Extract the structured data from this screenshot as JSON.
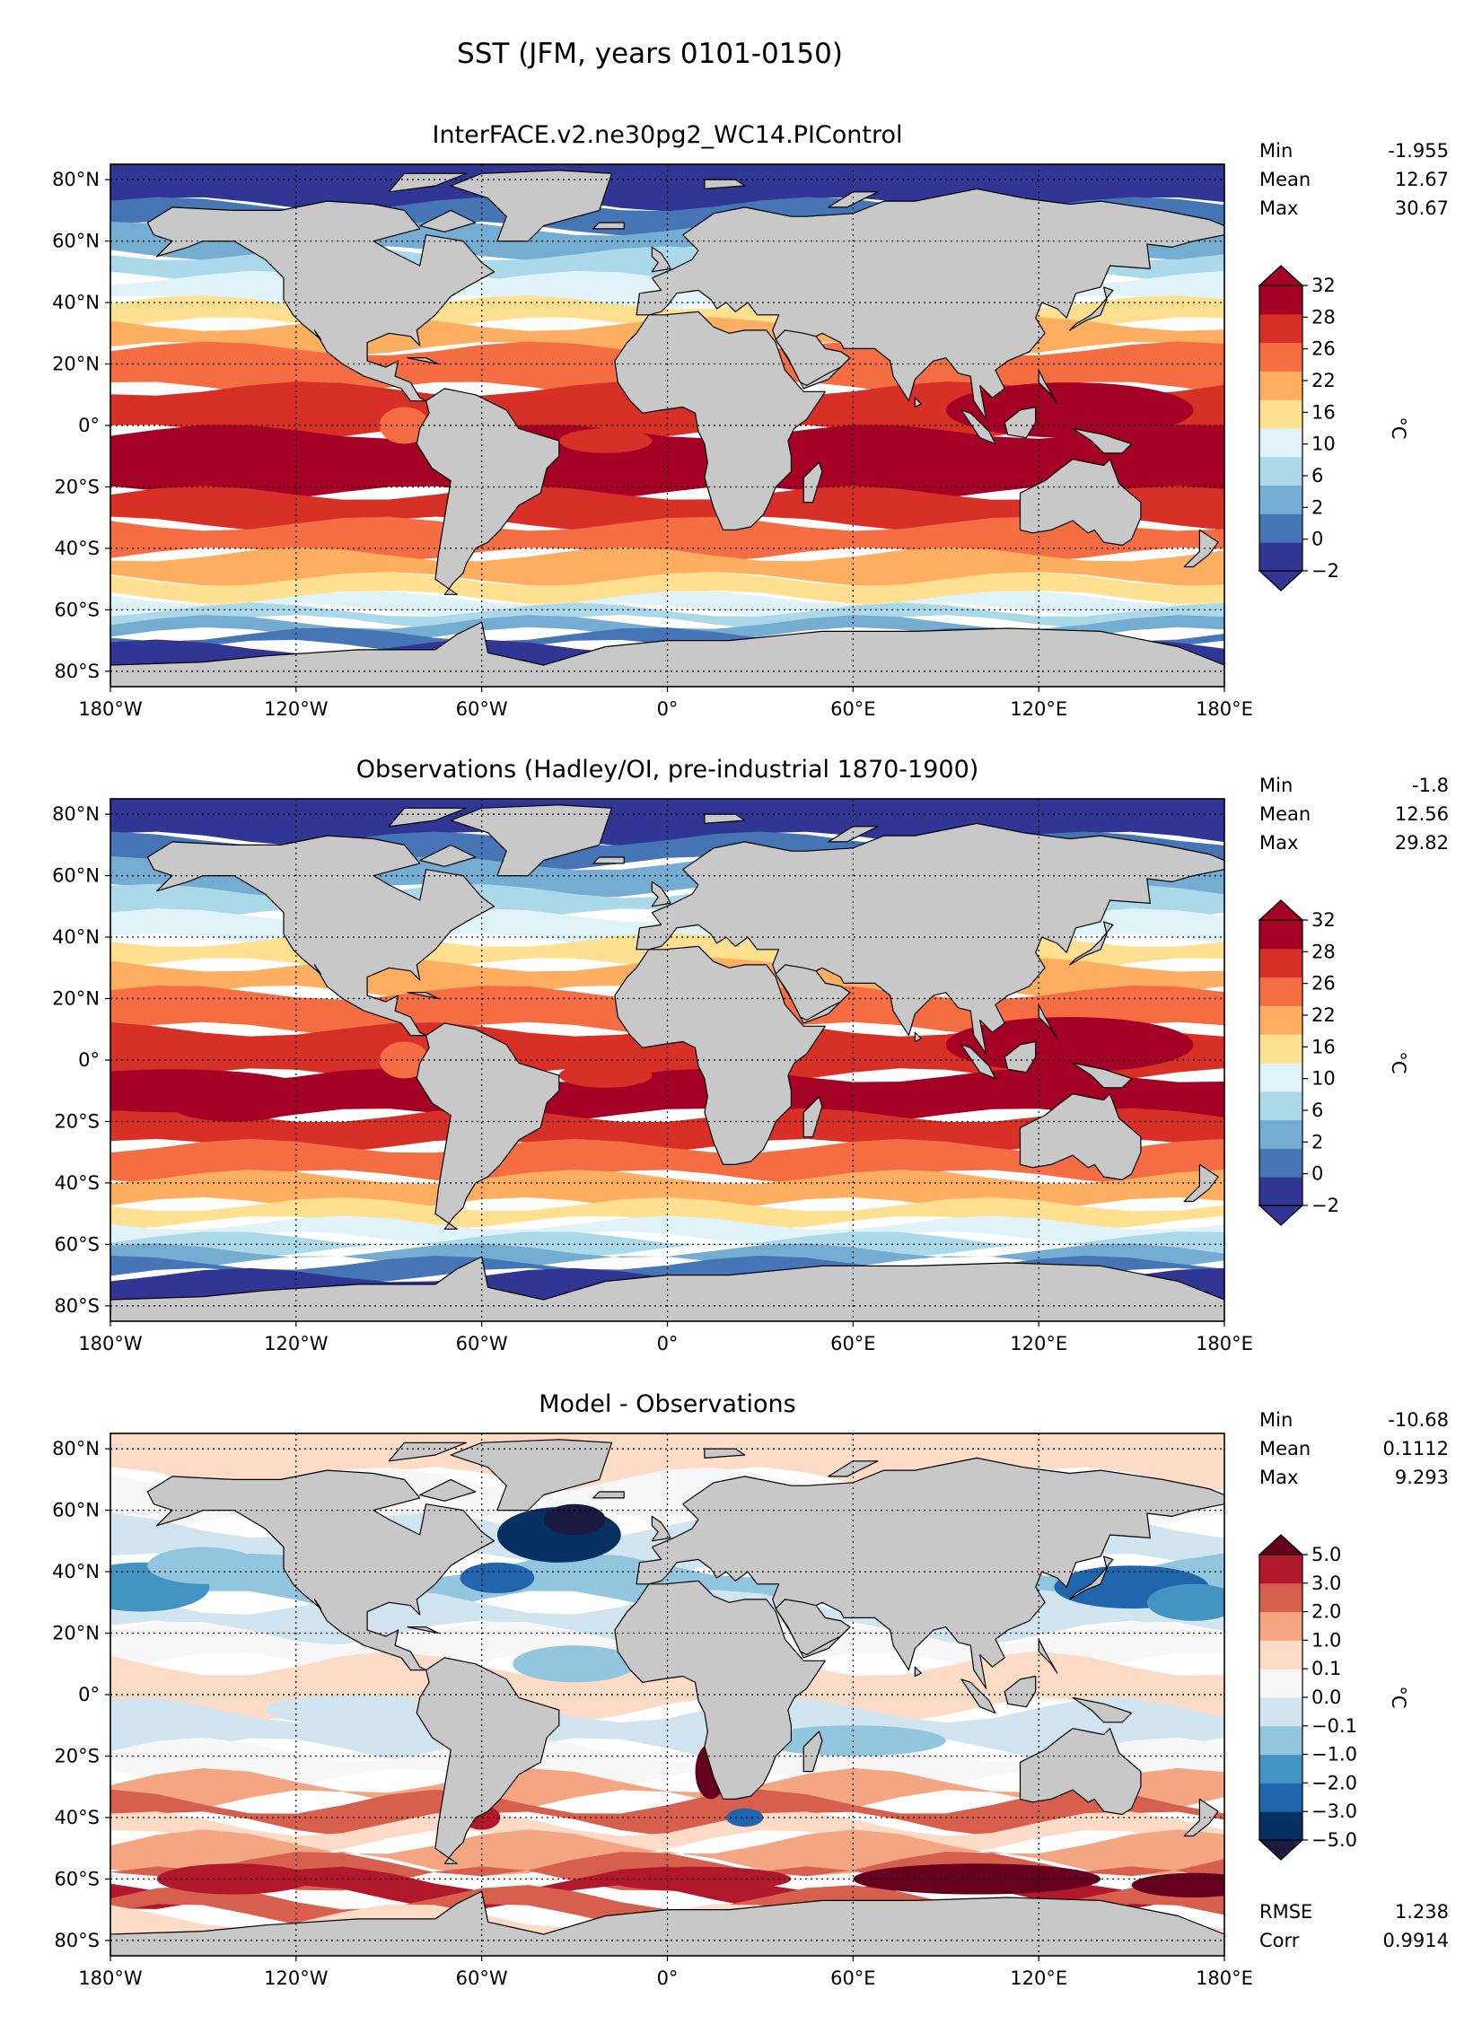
{
  "figure_title": "SST (JFM, years 0101-0150)",
  "lon_ticks": [
    "180°W",
    "120°W",
    "60°W",
    "0°",
    "60°E",
    "120°E",
    "180°E"
  ],
  "lat_ticks": [
    "80°N",
    "60°N",
    "40°N",
    "20°N",
    "0°",
    "20°S",
    "40°S",
    "60°S",
    "80°S"
  ],
  "colors": {
    "land": "#c8c8c8",
    "sst_levels": [
      "#313695",
      "#4575b4",
      "#74add1",
      "#abd9e9",
      "#e0f3f8",
      "#fee090",
      "#fdae61",
      "#f46d43",
      "#d73027",
      "#a50026"
    ],
    "diff_levels": [
      "#1a1a40",
      "#053061",
      "#2166ac",
      "#4393c3",
      "#92c5de",
      "#d1e5f0",
      "#f7f7f7",
      "#fddbc7",
      "#f4a582",
      "#d6604d",
      "#b2182b",
      "#67001f"
    ]
  },
  "panels": [
    {
      "title": "InterFACE.v2.ne30pg2_WC14.PIControl",
      "stats": [
        {
          "label": "Min",
          "value": "-1.955"
        },
        {
          "label": "Mean",
          "value": "12.67"
        },
        {
          "label": "Max",
          "value": "30.67"
        }
      ],
      "colorbar": {
        "unit": "°C",
        "ticks": [
          "−2",
          "0",
          "2",
          "6",
          "10",
          "16",
          "22",
          "26",
          "28",
          "32"
        ]
      }
    },
    {
      "title": "Observations (Hadley/OI, pre-industrial 1870-1900)",
      "stats": [
        {
          "label": "Min",
          "value": "-1.8"
        },
        {
          "label": "Mean",
          "value": "12.56"
        },
        {
          "label": "Max",
          "value": "29.82"
        }
      ],
      "colorbar": {
        "unit": "°C",
        "ticks": [
          "−2",
          "0",
          "2",
          "6",
          "10",
          "16",
          "22",
          "26",
          "28",
          "32"
        ]
      }
    },
    {
      "title": "Model - Observations",
      "stats": [
        {
          "label": "Min",
          "value": "-10.68"
        },
        {
          "label": "Mean",
          "value": "0.1112"
        },
        {
          "label": "Max",
          "value": "9.293"
        }
      ],
      "extra_stats": [
        {
          "label": "RMSE",
          "value": "1.238"
        },
        {
          "label": "Corr",
          "value": "0.9914"
        }
      ],
      "colorbar": {
        "unit": "°C",
        "ticks": [
          "−5.0",
          "−3.0",
          "−2.0",
          "−1.0",
          "−0.1",
          "0.0",
          "0.1",
          "1.0",
          "2.0",
          "3.0",
          "5.0"
        ]
      }
    }
  ]
}
